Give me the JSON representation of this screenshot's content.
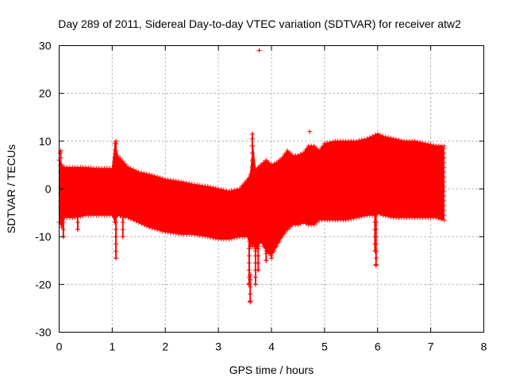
{
  "chart_data": {
    "type": "scatter",
    "title": "Day 289 of 2011, Sidereal Day-to-day VTEC variation (SDTVAR) for receiver atw2",
    "xlabel": "GPS time / hours",
    "ylabel": "SDTVAR / TECUs",
    "xlim": [
      0,
      8
    ],
    "ylim": [
      -30,
      30
    ],
    "x_ticks": [
      0,
      1,
      2,
      3,
      4,
      5,
      6,
      7,
      8
    ],
    "y_ticks": [
      -30,
      -20,
      -10,
      0,
      10,
      20,
      30
    ],
    "grid": true,
    "series_color": "#ff0000",
    "marker": "plus",
    "envelope": {
      "x": [
        0.0,
        0.05,
        0.1,
        0.2,
        0.3,
        0.5,
        0.7,
        0.9,
        1.0,
        1.05,
        1.1,
        1.3,
        1.5,
        1.7,
        2.0,
        2.3,
        2.5,
        2.8,
        3.0,
        3.2,
        3.4,
        3.55,
        3.6,
        3.65,
        3.7,
        3.8,
        3.9,
        4.0,
        4.1,
        4.2,
        4.3,
        4.4,
        4.5,
        4.6,
        4.7,
        4.8,
        4.9,
        5.0,
        5.2,
        5.4,
        5.6,
        5.8,
        5.9,
        6.0,
        6.1,
        6.3,
        6.5,
        6.7,
        6.9,
        7.1,
        7.25
      ],
      "upper": [
        6,
        5,
        4.5,
        4.5,
        4.5,
        4.5,
        4.3,
        4.3,
        4.3,
        9.5,
        7,
        4.5,
        3.5,
        3,
        2,
        1.5,
        1,
        0.5,
        0,
        -0.5,
        0,
        2,
        3,
        9,
        4,
        5,
        6,
        5,
        5.5,
        6.5,
        8,
        7,
        7,
        7.5,
        9,
        9,
        8,
        9.5,
        10,
        10,
        10,
        10.5,
        11,
        11.5,
        11,
        10.5,
        10,
        10,
        9.5,
        9,
        9
      ],
      "lower": [
        -7,
        -8,
        -6,
        -6,
        -6,
        -5.5,
        -5.5,
        -5.5,
        -5.5,
        -7,
        -5.5,
        -6,
        -7,
        -8,
        -9,
        -9.5,
        -9.5,
        -10,
        -10.5,
        -10.5,
        -10,
        -10,
        -12,
        -11,
        -13,
        -11,
        -13,
        -14,
        -12,
        -10,
        -8.5,
        -7.5,
        -7.5,
        -7,
        -7.5,
        -7.5,
        -6.5,
        -6.5,
        -6.5,
        -6.5,
        -6,
        -5.5,
        -5.5,
        -5,
        -5.5,
        -6,
        -6,
        -6,
        -6,
        -6,
        -6.5
      ]
    },
    "spikes": [
      {
        "x": 0.03,
        "y1": -4,
        "y2": 8
      },
      {
        "x": 0.08,
        "y1": -10,
        "y2": -3
      },
      {
        "x": 0.35,
        "y1": -8.5,
        "y2": -5
      },
      {
        "x": 1.07,
        "y1": -14.5,
        "y2": 10
      },
      {
        "x": 1.2,
        "y1": -10,
        "y2": -6
      },
      {
        "x": 3.58,
        "y1": -20,
        "y2": -10
      },
      {
        "x": 3.6,
        "y1": -23.5,
        "y2": -18
      },
      {
        "x": 3.64,
        "y1": -12,
        "y2": 11.5
      },
      {
        "x": 3.7,
        "y1": -20,
        "y2": -12
      },
      {
        "x": 3.75,
        "y1": -17,
        "y2": -10
      },
      {
        "x": 3.9,
        "y1": -15,
        "y2": -10
      },
      {
        "x": 4.0,
        "y1": -14.5,
        "y2": -10
      },
      {
        "x": 5.97,
        "y1": -16,
        "y2": -5
      },
      {
        "x": 5.95,
        "y1": -13,
        "y2": -5
      }
    ],
    "outliers": [
      {
        "x": 3.77,
        "y": 29
      },
      {
        "x": 4.72,
        "y": 12
      },
      {
        "x": 3.6,
        "y": -23.7
      },
      {
        "x": 3.58,
        "y": -19.8
      },
      {
        "x": 1.07,
        "y": 10
      },
      {
        "x": 0.02,
        "y": 7.5
      },
      {
        "x": 5.97,
        "y": -15.8
      }
    ]
  }
}
